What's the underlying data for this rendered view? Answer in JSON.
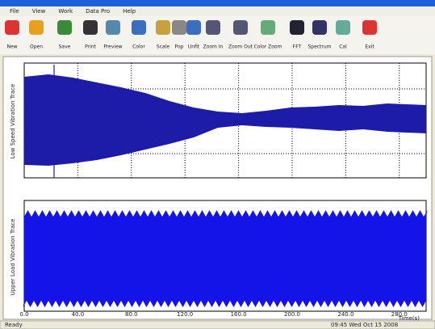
{
  "window": {
    "menu": [
      "File",
      "View",
      "Work",
      "Data Pro",
      "Help"
    ],
    "toolbar": [
      "New",
      "Open",
      "Save",
      "Print",
      "Preview",
      "Color",
      "Scale",
      "Pop",
      "Unfit",
      "Zoom In",
      "Zoom Out",
      "Color Zoom",
      "FFT",
      "Spectrum",
      "Cal",
      "Exit"
    ],
    "plots": [
      {
        "ylabel": "Low Speed Vibration Trace"
      },
      {
        "ylabel": "Upper Load Vibration Trace"
      }
    ],
    "x_axis": {
      "xlim": [
        0,
        300
      ],
      "xticks": [
        {
          "value": 0,
          "label": "0.0"
        },
        {
          "value": 40,
          "label": "40.0"
        },
        {
          "value": 80,
          "label": "80.0"
        },
        {
          "value": 120,
          "label": "120.0"
        },
        {
          "value": 160,
          "label": "160.0"
        },
        {
          "value": 200,
          "label": "200.0"
        },
        {
          "value": 240,
          "label": "240.0"
        },
        {
          "value": 280,
          "label": "280.0"
        }
      ],
      "label": "Time(s)"
    },
    "status": {
      "left": "Ready",
      "right": "09:45 Wed Oct 15 2008"
    }
  }
}
